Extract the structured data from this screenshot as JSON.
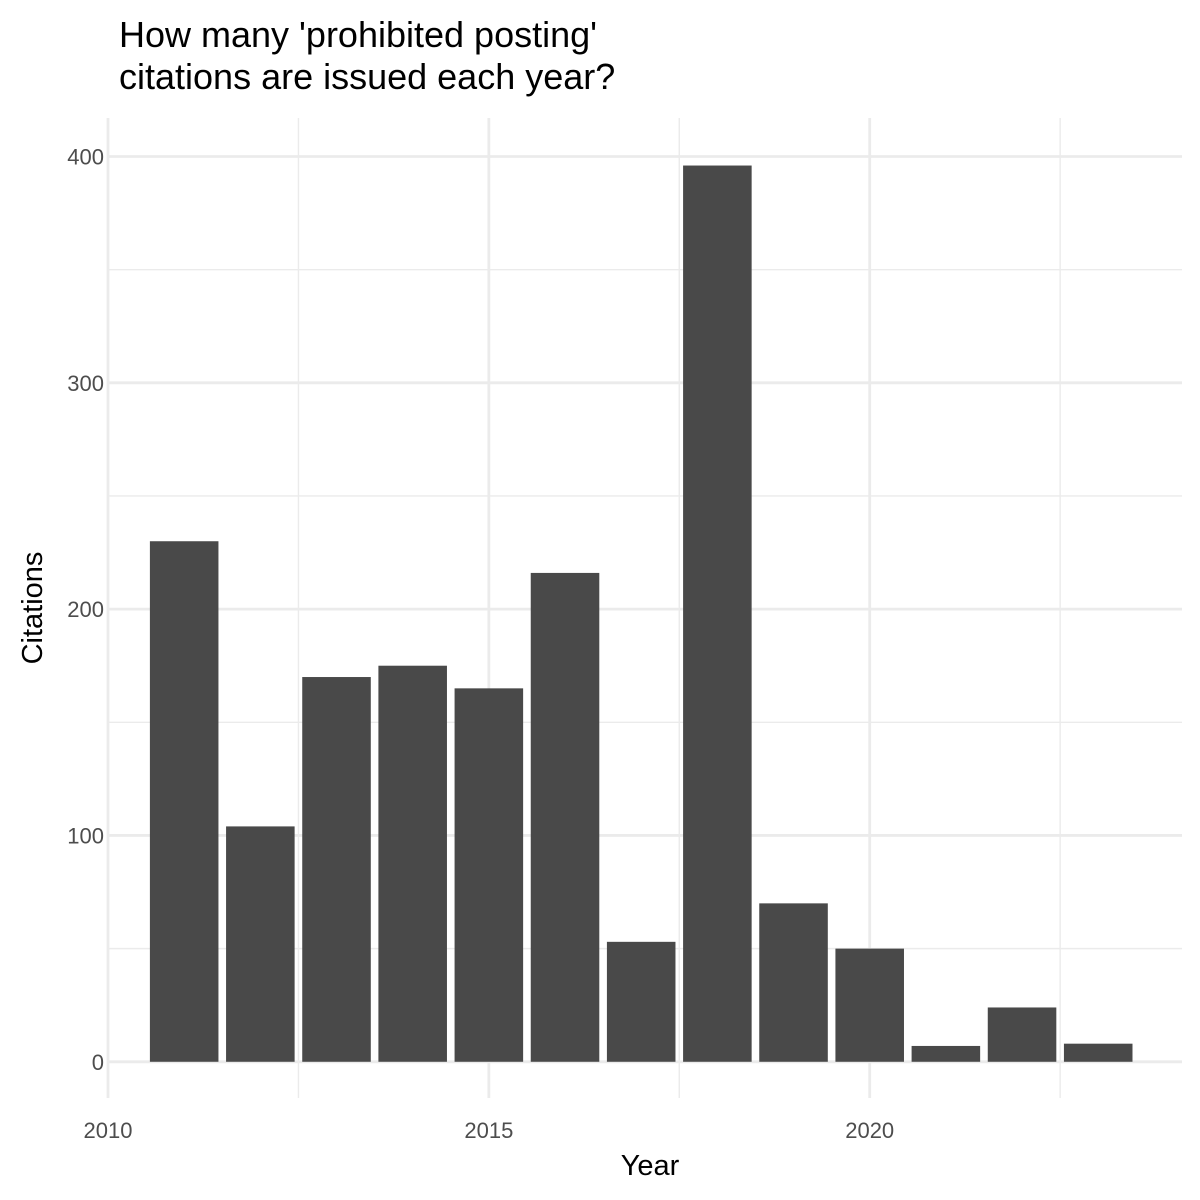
{
  "title_lines": [
    "How many 'prohibited posting'",
    "citations are issued each year?"
  ],
  "chart_data": {
    "type": "bar",
    "title": "How many 'prohibited posting' citations are issued each year?",
    "xlabel": "Year",
    "ylabel": "Citations",
    "x": [
      2011,
      2012,
      2013,
      2014,
      2015,
      2016,
      2017,
      2018,
      2019,
      2020,
      2021,
      2022,
      2023
    ],
    "values": [
      230,
      104,
      170,
      175,
      165,
      216,
      53,
      396,
      70,
      50,
      7,
      24,
      8
    ],
    "xlim": [
      2010,
      2024.1
    ],
    "ylim": [
      -16,
      417
    ],
    "x_ticks": [
      2010,
      2015,
      2020
    ],
    "x_tick_labels": [
      "2010",
      "2015",
      "2020"
    ],
    "y_ticks": [
      0,
      100,
      200,
      300,
      400
    ],
    "y_tick_labels": [
      "0",
      "100",
      "200",
      "300",
      "400"
    ],
    "grid": true,
    "bar_color": "#494949",
    "grid_color": "#ebebeb"
  }
}
